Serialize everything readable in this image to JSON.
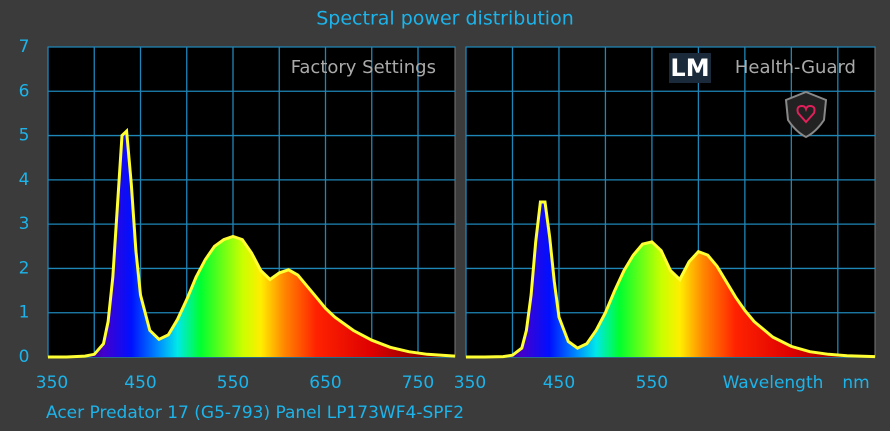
{
  "title": "Spectral power distribution",
  "caption": "Acer Predator 17 (G5-793) Panel LP173WF4-SPF2",
  "chart_data": [
    {
      "type": "area",
      "annotation": "Factory Settings",
      "color": "#ffff33",
      "ytick_labels": true,
      "x": [
        350,
        370,
        390,
        400,
        410,
        415,
        420,
        425,
        430,
        435,
        440,
        445,
        450,
        460,
        470,
        480,
        490,
        500,
        510,
        520,
        530,
        540,
        550,
        560,
        570,
        580,
        590,
        600,
        610,
        620,
        630,
        640,
        650,
        660,
        680,
        700,
        720,
        740,
        760,
        790
      ],
      "values": [
        0,
        0,
        0.02,
        0.06,
        0.3,
        0.8,
        1.8,
        3.4,
        5.0,
        5.1,
        3.9,
        2.4,
        1.4,
        0.6,
        0.4,
        0.5,
        0.85,
        1.3,
        1.8,
        2.2,
        2.5,
        2.65,
        2.72,
        2.65,
        2.35,
        1.95,
        1.75,
        1.9,
        1.97,
        1.85,
        1.6,
        1.35,
        1.1,
        0.9,
        0.6,
        0.38,
        0.22,
        0.12,
        0.06,
        0.02
      ],
      "xlim": [
        350,
        790
      ],
      "xticks": [
        350,
        450,
        550,
        650,
        750
      ],
      "xminor": [
        400,
        500,
        600,
        700
      ],
      "ylim": [
        0,
        7
      ],
      "yticks": [
        0,
        1,
        2,
        3,
        4,
        5,
        6,
        7
      ]
    },
    {
      "type": "area",
      "logo": "LM",
      "annotation": "Health-Guard",
      "x_label": "Wavelength",
      "x_unit": "nm",
      "color": "#ffff33",
      "ytick_labels": false,
      "x": [
        350,
        370,
        390,
        400,
        410,
        415,
        420,
        425,
        430,
        435,
        440,
        445,
        450,
        460,
        470,
        480,
        490,
        500,
        510,
        520,
        530,
        540,
        550,
        560,
        570,
        580,
        590,
        600,
        610,
        620,
        630,
        640,
        650,
        660,
        680,
        700,
        720,
        740,
        760,
        790
      ],
      "values": [
        0,
        0,
        0.01,
        0.04,
        0.2,
        0.6,
        1.4,
        2.6,
        3.5,
        3.5,
        2.7,
        1.7,
        0.9,
        0.35,
        0.2,
        0.3,
        0.6,
        1.0,
        1.5,
        1.95,
        2.3,
        2.55,
        2.6,
        2.4,
        1.95,
        1.75,
        2.15,
        2.38,
        2.3,
        2.05,
        1.7,
        1.35,
        1.05,
        0.8,
        0.45,
        0.24,
        0.12,
        0.06,
        0.03,
        0.01
      ],
      "xlim": [
        350,
        790
      ],
      "xticks": [
        350,
        450,
        550
      ],
      "xminor": [
        400,
        500,
        600,
        650,
        700,
        750
      ],
      "ylim": [
        0,
        7
      ],
      "yticks": [
        0,
        1,
        2,
        3,
        4,
        5,
        6,
        7
      ]
    }
  ]
}
